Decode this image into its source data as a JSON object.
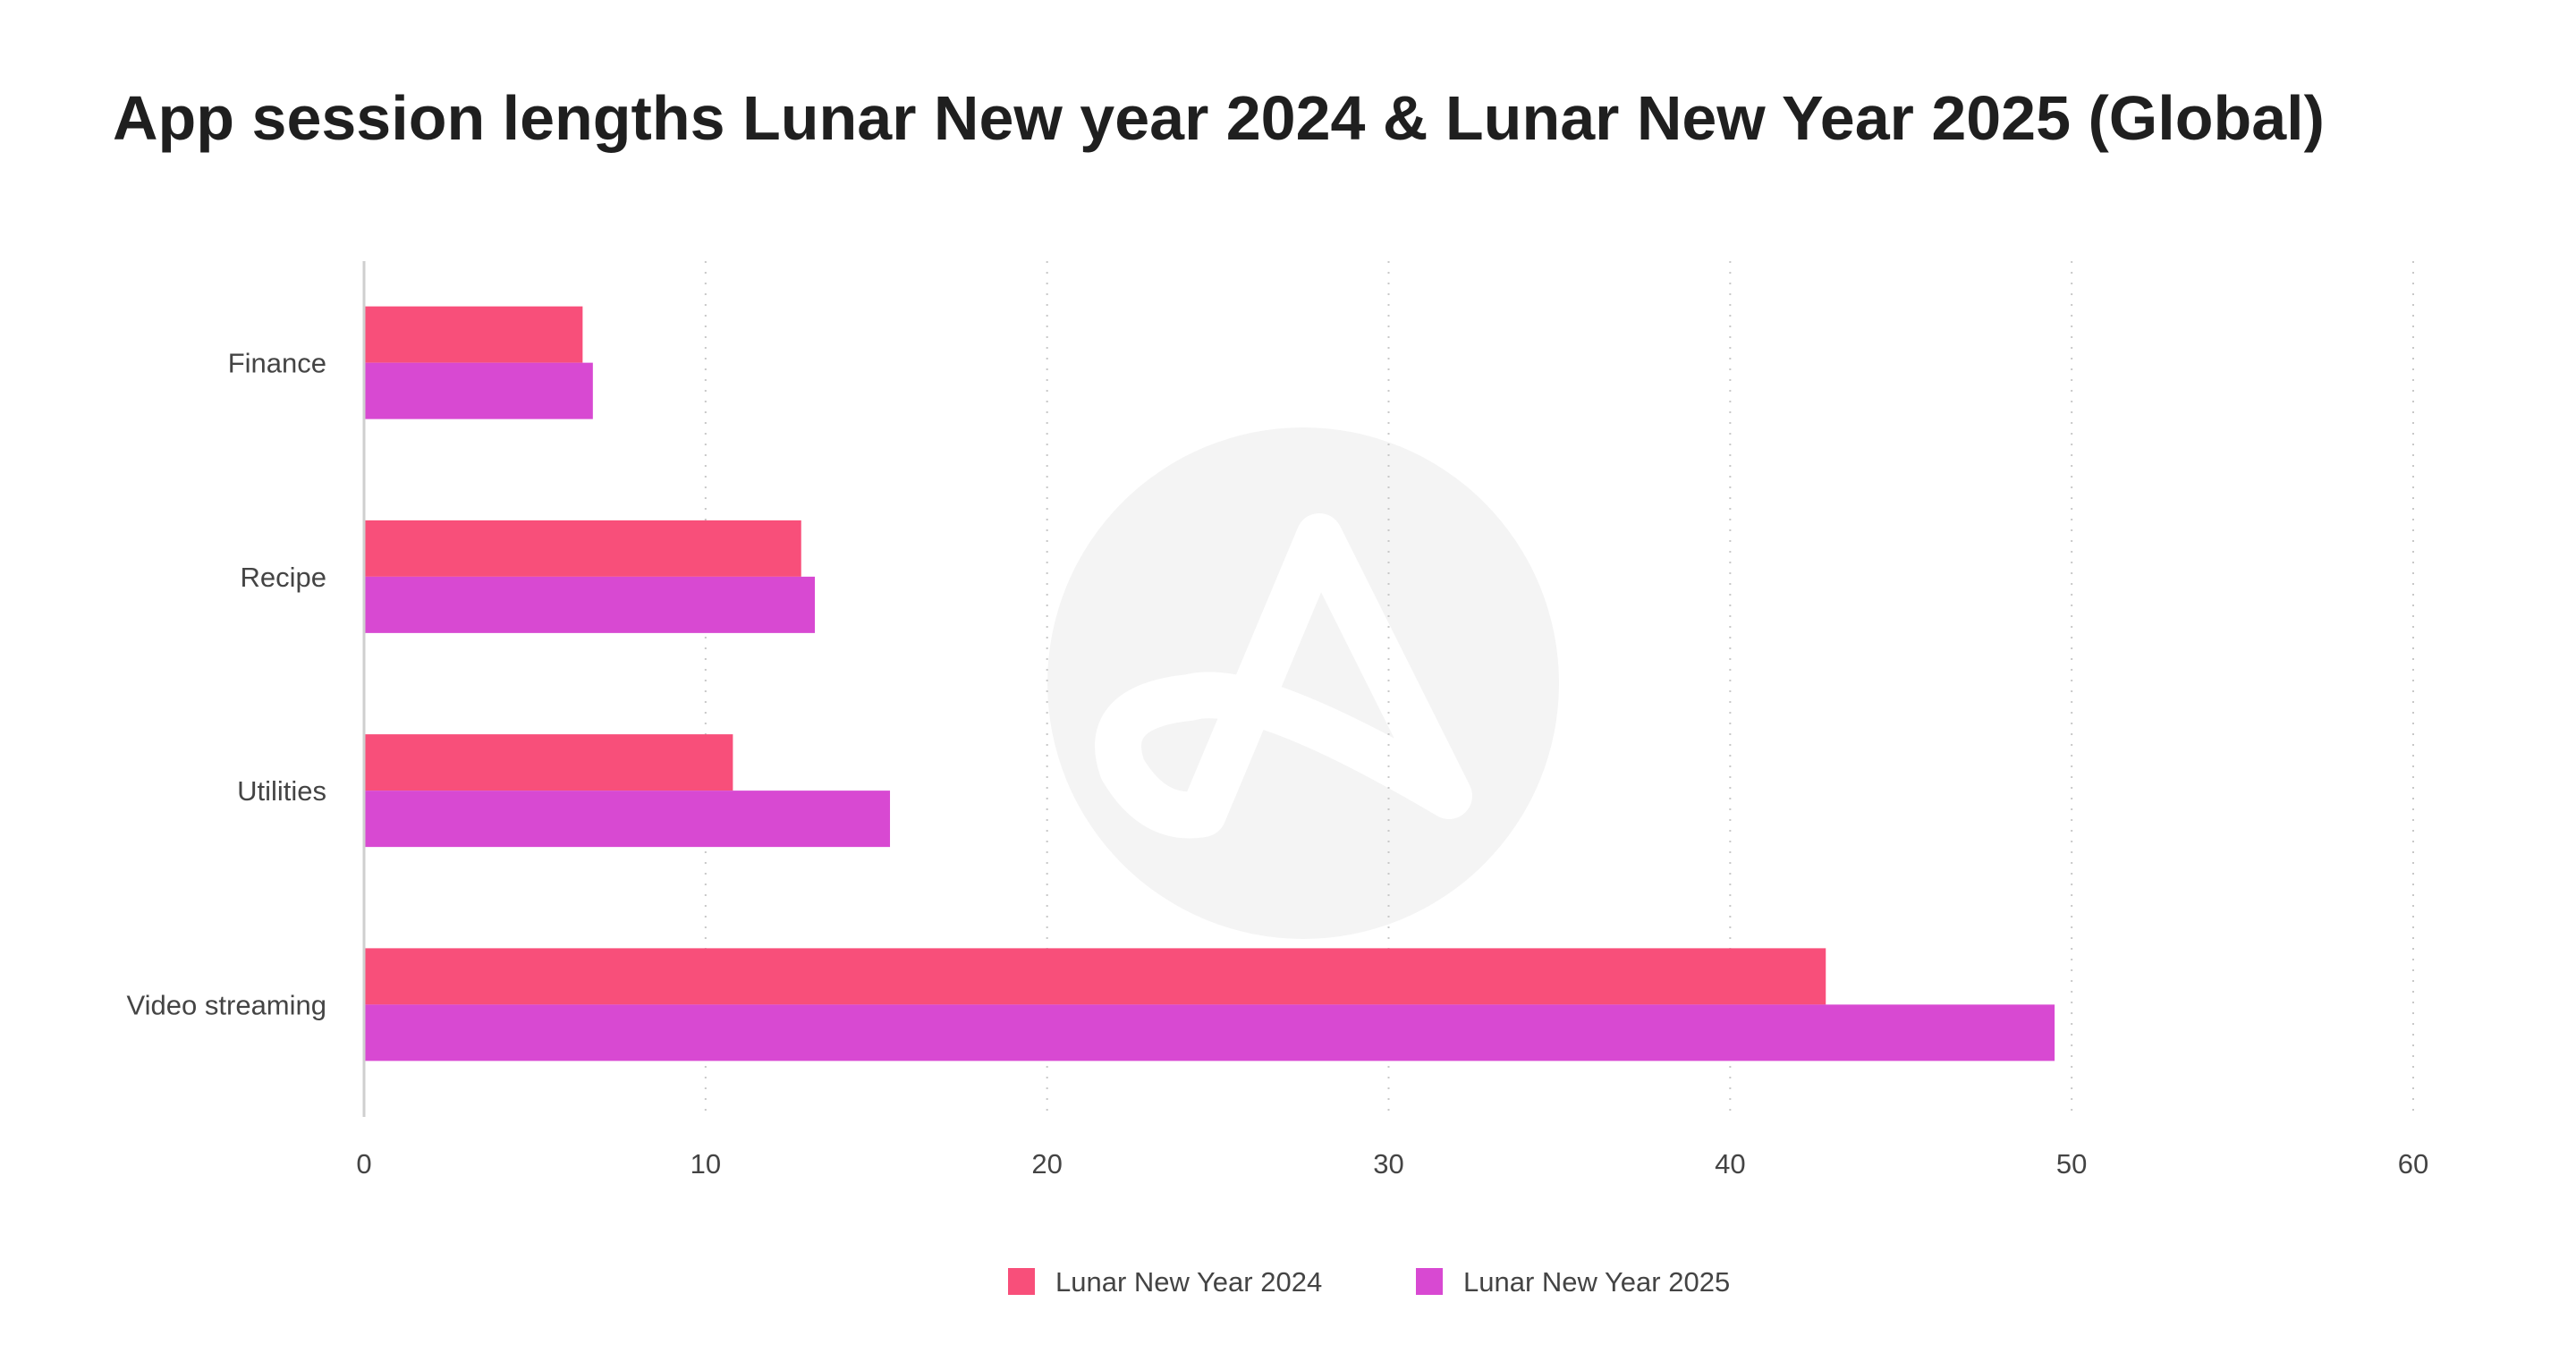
{
  "chart_data": {
    "type": "bar",
    "orientation": "horizontal",
    "title": "App session lengths Lunar New year 2024 & Lunar New Year 2025 (Global)",
    "xlabel": "",
    "ylabel": "",
    "categories": [
      "Finance",
      "Recipe",
      "Utilities",
      "Video streaming"
    ],
    "series": [
      {
        "name": "Lunar New Year 2024",
        "color": "#f84f7a",
        "values": [
          6.4,
          12.8,
          10.8,
          42.8
        ]
      },
      {
        "name": "Lunar New Year 2025",
        "color": "#d849d2",
        "values": [
          6.7,
          13.2,
          15.4,
          49.5
        ]
      }
    ],
    "xlim": [
      0,
      60
    ],
    "xticks": [
      "0",
      "10",
      "20",
      "30",
      "40",
      "50",
      "60"
    ],
    "grid": "vertical dotted",
    "legend_position": "bottom-center"
  }
}
